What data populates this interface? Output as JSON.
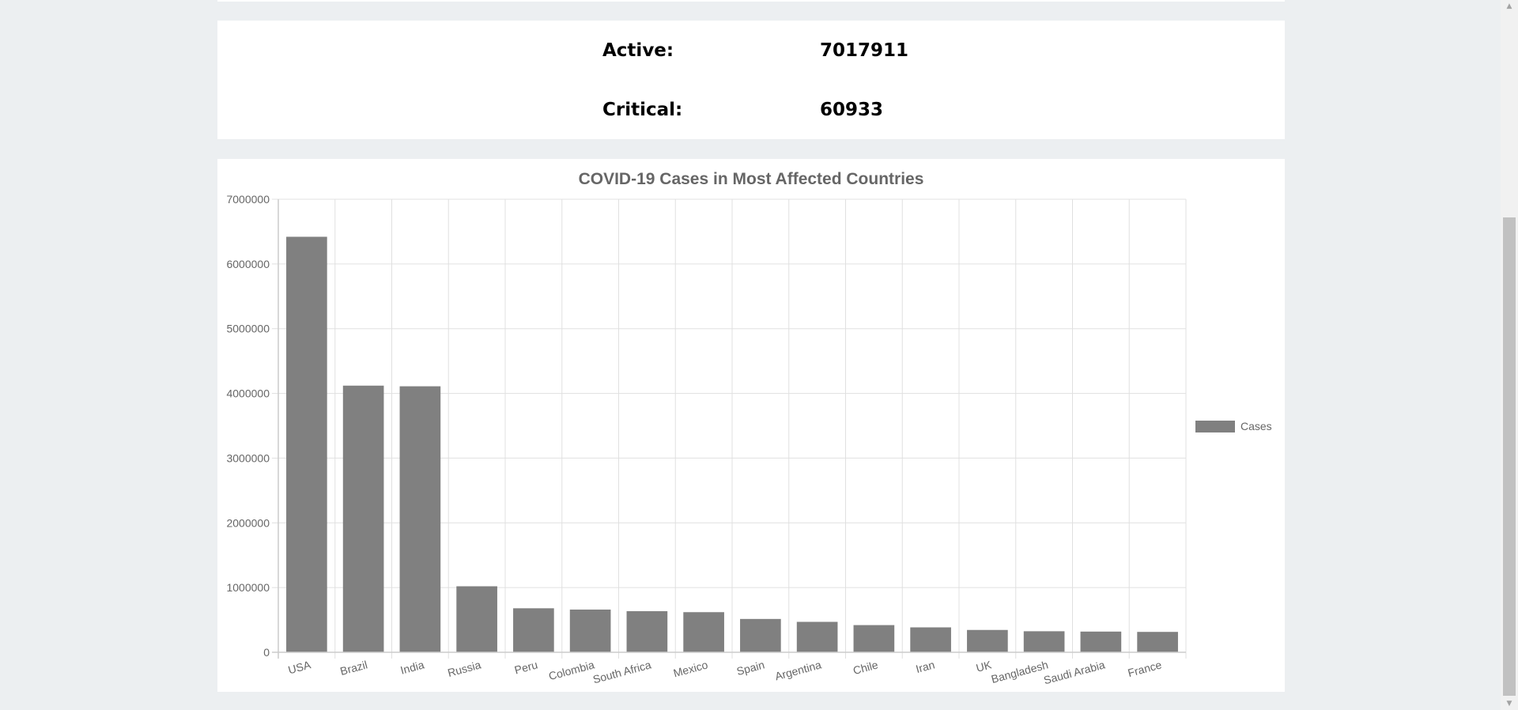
{
  "stats": [
    {
      "label": "Active:",
      "value": "7017911"
    },
    {
      "label": "Critical:",
      "value": "60933"
    }
  ],
  "colors": {
    "page_background": "#eceff1",
    "card_background": "#ffffff",
    "bar": "#808080",
    "grid": "#e0e0e0",
    "axis_text": "#666666"
  },
  "scrollbar": {
    "up_icon": "triangle-up-icon",
    "down_icon": "triangle-down-icon"
  },
  "chart_data": {
    "type": "bar",
    "title": "COVID-19 Cases in Most Affected Countries",
    "xlabel": "",
    "ylabel": "",
    "categories": [
      "USA",
      "Brazil",
      "India",
      "Russia",
      "Peru",
      "Colombia",
      "South Africa",
      "Mexico",
      "Spain",
      "Argentina",
      "Chile",
      "Iran",
      "UK",
      "Bangladesh",
      "Saudi Arabia",
      "France"
    ],
    "series": [
      {
        "name": "Cases",
        "values": [
          6420000,
          4120000,
          4110000,
          1020000,
          680000,
          660000,
          635000,
          620000,
          515000,
          470000,
          420000,
          385000,
          345000,
          325000,
          320000,
          315000
        ]
      }
    ],
    "ylim": [
      0,
      7000000
    ],
    "yticks": [
      "0",
      "1000000",
      "2000000",
      "3000000",
      "4000000",
      "5000000",
      "6000000",
      "7000000"
    ],
    "grid": true,
    "legend_position": "right"
  }
}
